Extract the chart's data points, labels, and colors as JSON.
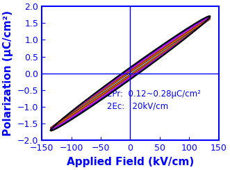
{
  "title": "",
  "xlabel": "Applied Field (kV/cm)",
  "ylabel": "Polarization (μC/cm²)",
  "xlim": [
    -150,
    150
  ],
  "ylim": [
    -2.0,
    2.0
  ],
  "xticks": [
    -150,
    -100,
    -50,
    0,
    50,
    100,
    150
  ],
  "yticks": [
    -2.0,
    -1.5,
    -1.0,
    -0.5,
    0.0,
    0.5,
    1.0,
    1.5,
    2.0
  ],
  "annotation_text": "2Pr:  0.12~0.28μC/cm²\n2Ec:   20kV/cm",
  "annotation_color": "#0000ff",
  "spine_color": "#0000ff",
  "axis_line_color": "#0000ff",
  "tick_color": "#0000ff",
  "label_color": "#0000ff",
  "background_color": "#ffffff",
  "loop_colors_outer_to_inner": [
    "#000000",
    "#0000ff",
    "#cc00cc",
    "#ff00ff",
    "#008000",
    "#ff0000",
    "#ff8800",
    "#000000"
  ],
  "loop_E_max": 135,
  "xlabel_fontsize": 11,
  "ylabel_fontsize": 11,
  "tick_fontsize": 9,
  "annotation_fontsize": 8.5
}
